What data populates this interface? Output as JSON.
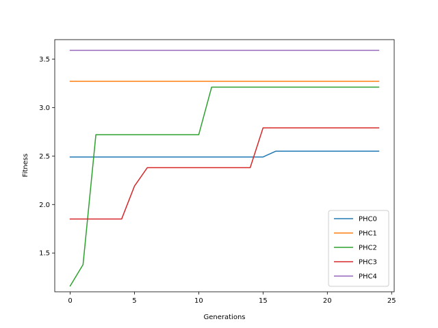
{
  "chart_data": {
    "type": "line",
    "title": "",
    "xlabel": "Generations",
    "ylabel": "Fitness",
    "xlim": [
      -1.2,
      25.2
    ],
    "ylim": [
      1.1,
      3.7
    ],
    "xticks": [
      0,
      5,
      10,
      15,
      20,
      25
    ],
    "yticks": [
      1.5,
      2.0,
      2.5,
      3.0,
      3.5
    ],
    "xtick_labels": [
      "0",
      "5",
      "10",
      "15",
      "20",
      "25"
    ],
    "ytick_labels": [
      "1.5",
      "2.0",
      "2.5",
      "3.0",
      "3.5"
    ],
    "grid": false,
    "legend_position": "lower-right",
    "x": [
      0,
      1,
      2,
      3,
      4,
      5,
      6,
      7,
      8,
      9,
      10,
      11,
      12,
      13,
      14,
      15,
      16,
      17,
      18,
      19,
      20,
      21,
      22,
      23,
      24
    ],
    "series": [
      {
        "name": "PHC0",
        "color": "#1f77b4",
        "values": [
          2.49,
          2.49,
          2.49,
          2.49,
          2.49,
          2.49,
          2.49,
          2.49,
          2.49,
          2.49,
          2.49,
          2.49,
          2.49,
          2.49,
          2.49,
          2.49,
          2.55,
          2.55,
          2.55,
          2.55,
          2.55,
          2.55,
          2.55,
          2.55,
          2.55
        ]
      },
      {
        "name": "PHC1",
        "color": "#ff7f0e",
        "values": [
          3.27,
          3.27,
          3.27,
          3.27,
          3.27,
          3.27,
          3.27,
          3.27,
          3.27,
          3.27,
          3.27,
          3.27,
          3.27,
          3.27,
          3.27,
          3.27,
          3.27,
          3.27,
          3.27,
          3.27,
          3.27,
          3.27,
          3.27,
          3.27,
          3.27
        ]
      },
      {
        "name": "PHC2",
        "color": "#2ca02c",
        "values": [
          1.16,
          1.38,
          2.72,
          2.72,
          2.72,
          2.72,
          2.72,
          2.72,
          2.72,
          2.72,
          2.72,
          3.21,
          3.21,
          3.21,
          3.21,
          3.21,
          3.21,
          3.21,
          3.21,
          3.21,
          3.21,
          3.21,
          3.21,
          3.21,
          3.21
        ]
      },
      {
        "name": "PHC3",
        "color": "#d62728",
        "values": [
          1.85,
          1.85,
          1.85,
          1.85,
          1.85,
          2.19,
          2.38,
          2.38,
          2.38,
          2.38,
          2.38,
          2.38,
          2.38,
          2.38,
          2.38,
          2.79,
          2.79,
          2.79,
          2.79,
          2.79,
          2.79,
          2.79,
          2.79,
          2.79,
          2.79
        ]
      },
      {
        "name": "PHC4",
        "color": "#9467bd",
        "values": [
          3.59,
          3.59,
          3.59,
          3.59,
          3.59,
          3.59,
          3.59,
          3.59,
          3.59,
          3.59,
          3.59,
          3.59,
          3.59,
          3.59,
          3.59,
          3.59,
          3.59,
          3.59,
          3.59,
          3.59,
          3.59,
          3.59,
          3.59,
          3.59,
          3.59
        ]
      }
    ]
  }
}
